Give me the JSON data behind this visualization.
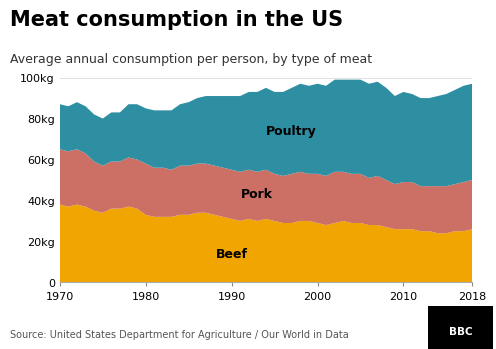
{
  "title": "Meat consumption in the US",
  "subtitle": "Average annual consumption per person, by type of meat",
  "source": "Source: United States Department for Agriculture / Our World in Data",
  "years": [
    1970,
    1971,
    1972,
    1973,
    1974,
    1975,
    1976,
    1977,
    1978,
    1979,
    1980,
    1981,
    1982,
    1983,
    1984,
    1985,
    1986,
    1987,
    1988,
    1989,
    1990,
    1991,
    1992,
    1993,
    1994,
    1995,
    1996,
    1997,
    1998,
    1999,
    2000,
    2001,
    2002,
    2003,
    2004,
    2005,
    2006,
    2007,
    2008,
    2009,
    2010,
    2011,
    2012,
    2013,
    2014,
    2015,
    2016,
    2017,
    2018
  ],
  "beef": [
    38,
    37,
    38,
    37,
    35,
    34,
    36,
    36,
    37,
    36,
    33,
    32,
    32,
    32,
    33,
    33,
    34,
    34,
    33,
    32,
    31,
    30,
    31,
    30,
    31,
    30,
    29,
    29,
    30,
    30,
    29,
    28,
    29,
    30,
    29,
    29,
    28,
    28,
    27,
    26,
    26,
    26,
    25,
    25,
    24,
    24,
    25,
    25,
    26
  ],
  "pork": [
    27,
    27,
    27,
    26,
    24,
    23,
    23,
    23,
    24,
    24,
    25,
    24,
    24,
    23,
    24,
    24,
    24,
    24,
    24,
    24,
    24,
    24,
    24,
    24,
    24,
    23,
    23,
    24,
    24,
    23,
    24,
    24,
    25,
    24,
    24,
    24,
    23,
    24,
    23,
    22,
    23,
    23,
    22,
    22,
    23,
    23,
    23,
    24,
    24
  ],
  "poultry": [
    22,
    22,
    23,
    23,
    23,
    23,
    24,
    24,
    26,
    27,
    27,
    28,
    28,
    29,
    30,
    31,
    32,
    33,
    34,
    35,
    36,
    37,
    38,
    39,
    40,
    40,
    41,
    42,
    43,
    43,
    44,
    44,
    45,
    45,
    46,
    46,
    46,
    46,
    45,
    43,
    44,
    43,
    43,
    43,
    44,
    45,
    46,
    47,
    47
  ],
  "beef_color": "#f0a500",
  "pork_color": "#cc7066",
  "poultry_color": "#2e8fa3",
  "background_color": "#ffffff",
  "ylim": [
    0,
    100
  ],
  "yticks": [
    0,
    20,
    40,
    60,
    80,
    100
  ],
  "ytick_labels": [
    "0",
    "20kg",
    "40kg",
    "60kg",
    "80kg",
    "100kg"
  ],
  "title_fontsize": 15,
  "subtitle_fontsize": 9,
  "annotation_fontsize": 9,
  "tick_fontsize": 8,
  "source_fontsize": 7
}
